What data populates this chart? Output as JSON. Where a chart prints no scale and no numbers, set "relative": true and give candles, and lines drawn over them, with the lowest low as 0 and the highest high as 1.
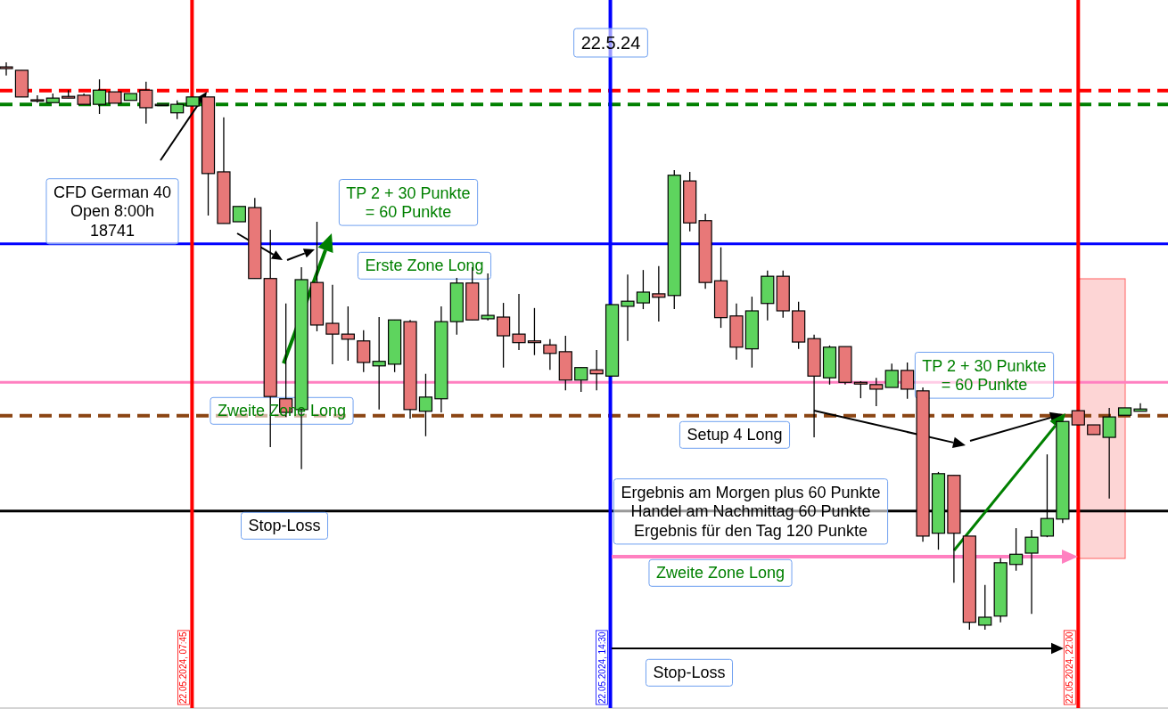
{
  "chart_data": {
    "type": "candlestick",
    "title": "22.5.24",
    "relative": true,
    "categories": [
      null,
      null,
      null,
      null,
      null,
      null,
      null,
      null,
      null,
      null,
      null,
      null,
      null,
      null,
      null,
      null,
      null,
      null,
      null,
      null,
      null,
      null,
      null,
      null,
      null,
      null,
      null,
      null,
      null,
      null,
      null,
      null,
      null,
      null,
      null,
      null,
      null,
      null,
      null,
      null,
      null,
      null,
      null,
      null,
      null,
      null,
      null,
      null,
      null,
      null,
      null,
      null,
      null,
      null,
      null,
      null,
      null,
      null,
      null,
      null,
      null,
      null,
      null,
      null,
      null,
      null,
      null,
      null,
      null,
      null,
      null,
      null,
      null,
      null
    ],
    "ohlc": [
      [
        0.992,
        1.0,
        0.977,
        0.989
      ],
      [
        0.986,
        0.986,
        0.939,
        0.939
      ],
      [
        0.934,
        0.942,
        0.929,
        0.933
      ],
      [
        0.929,
        0.945,
        0.929,
        0.937
      ],
      [
        0.94,
        0.951,
        0.937,
        0.937
      ],
      [
        0.942,
        0.945,
        0.926,
        0.926
      ],
      [
        0.926,
        0.97,
        0.909,
        0.951
      ],
      [
        0.948,
        0.948,
        0.928,
        0.928
      ],
      [
        0.933,
        0.945,
        0.933,
        0.945
      ],
      [
        0.951,
        0.966,
        0.892,
        0.92
      ],
      [
        0.925,
        0.926,
        0.925,
        0.926
      ],
      [
        0.911,
        0.933,
        0.9,
        0.926
      ],
      [
        0.923,
        0.939,
        0.923,
        0.939
      ],
      [
        0.939,
        0.939,
        0.73,
        0.804
      ],
      [
        0.807,
        0.903,
        0.716,
        0.716
      ],
      [
        0.719,
        0.746,
        0.719,
        0.746
      ],
      [
        0.744,
        0.761,
        0.619,
        0.619
      ],
      [
        0.619,
        0.705,
        0.322,
        0.411
      ],
      [
        0.407,
        0.575,
        0.375,
        0.383
      ],
      [
        0.388,
        0.639,
        0.283,
        0.617
      ],
      [
        0.612,
        0.719,
        0.526,
        0.537
      ],
      [
        0.54,
        0.608,
        0.468,
        0.521
      ],
      [
        0.521,
        0.57,
        0.474,
        0.512
      ],
      [
        0.509,
        0.528,
        0.454,
        0.471
      ],
      [
        0.465,
        0.551,
        0.388,
        0.473
      ],
      [
        0.468,
        0.546,
        0.454,
        0.546
      ],
      [
        0.543,
        0.546,
        0.372,
        0.388
      ],
      [
        0.385,
        0.451,
        0.341,
        0.41
      ],
      [
        0.407,
        0.57,
        0.383,
        0.543
      ],
      [
        0.543,
        0.62,
        0.52,
        0.611
      ],
      [
        0.611,
        0.639,
        0.546,
        0.546
      ],
      [
        0.548,
        0.628,
        0.545,
        0.554
      ],
      [
        0.551,
        0.576,
        0.462,
        0.518
      ],
      [
        0.521,
        0.592,
        0.493,
        0.506
      ],
      [
        0.509,
        0.567,
        0.484,
        0.506
      ],
      [
        0.502,
        0.512,
        0.458,
        0.487
      ],
      [
        0.49,
        0.518,
        0.422,
        0.44
      ],
      [
        0.44,
        0.462,
        0.419,
        0.462
      ],
      [
        0.458,
        0.493,
        0.422,
        0.451
      ],
      [
        0.447,
        0.573,
        0.447,
        0.573
      ],
      [
        0.57,
        0.626,
        0.509,
        0.579
      ],
      [
        0.576,
        0.634,
        0.565,
        0.595
      ],
      [
        0.592,
        0.641,
        0.543,
        0.586
      ],
      [
        0.589,
        0.81,
        0.565,
        0.801
      ],
      [
        0.791,
        0.807,
        0.702,
        0.717
      ],
      [
        0.721,
        0.733,
        0.601,
        0.612
      ],
      [
        0.615,
        0.674,
        0.532,
        0.55
      ],
      [
        0.553,
        0.575,
        0.476,
        0.498
      ],
      [
        0.495,
        0.587,
        0.462,
        0.562
      ],
      [
        0.575,
        0.633,
        0.545,
        0.623
      ],
      [
        0.623,
        0.633,
        0.55,
        0.562
      ],
      [
        0.562,
        0.578,
        0.495,
        0.507
      ],
      [
        0.513,
        0.52,
        0.339,
        0.447
      ],
      [
        0.444,
        0.501,
        0.432,
        0.498
      ],
      [
        0.499,
        0.499,
        0.432,
        0.436
      ],
      [
        0.436,
        0.438,
        0.408,
        0.433
      ],
      [
        0.432,
        0.444,
        0.394,
        0.424
      ],
      [
        0.427,
        0.469,
        0.427,
        0.457
      ],
      [
        0.457,
        0.471,
        0.407,
        0.424
      ],
      [
        0.421,
        0.427,
        0.155,
        0.165
      ],
      [
        0.17,
        0.278,
        0.141,
        0.275
      ],
      [
        0.272,
        0.272,
        0.083,
        0.17
      ],
      [
        0.165,
        0.165,
        0.0,
        0.013
      ],
      [
        0.008,
        0.079,
        0.0,
        0.022
      ],
      [
        0.024,
        0.126,
        0.013,
        0.118
      ],
      [
        0.115,
        0.179,
        0.104,
        0.133
      ],
      [
        0.135,
        0.176,
        0.028,
        0.163
      ],
      [
        0.165,
        0.309,
        0.163,
        0.196
      ],
      [
        0.195,
        0.367,
        0.188,
        0.367
      ],
      [
        0.386,
        0.386,
        0.361,
        0.361
      ],
      [
        0.361,
        0.361,
        0.344,
        0.344
      ],
      [
        0.339,
        0.391,
        0.231,
        0.375
      ],
      [
        0.378,
        0.391,
        0.378,
        0.391
      ],
      [
        0.385,
        0.399,
        0.385,
        0.389
      ]
    ],
    "colors": [
      "#e87878",
      "#e87878",
      "#e87878",
      "#5ed45e",
      "#e87878",
      "#e87878",
      "#5ed45e",
      "#e87878",
      "#5ed45e",
      "#e87878",
      "#5ed45e",
      "#5ed45e",
      "#5ed45e",
      "#e87878",
      "#e87878",
      "#5ed45e",
      "#e87878",
      "#e87878",
      "#e87878",
      "#5ed45e",
      "#e87878",
      "#e87878",
      "#e87878",
      "#e87878",
      "#5ed45e",
      "#5ed45e",
      "#e87878",
      "#5ed45e",
      "#5ed45e",
      "#5ed45e",
      "#e87878",
      "#5ed45e",
      "#e87878",
      "#e87878",
      "#e87878",
      "#e87878",
      "#e87878",
      "#5ed45e",
      "#e87878",
      "#5ed45e",
      "#5ed45e",
      "#5ed45e",
      "#e87878",
      "#5ed45e",
      "#e87878",
      "#e87878",
      "#e87878",
      "#e87878",
      "#5ed45e",
      "#5ed45e",
      "#e87878",
      "#e87878",
      "#e87878",
      "#5ed45e",
      "#e87878",
      "#e87878",
      "#e87878",
      "#5ed45e",
      "#e87878",
      "#e87878",
      "#5ed45e",
      "#e87878",
      "#e87878",
      "#5ed45e",
      "#5ed45e",
      "#5ed45e",
      "#5ed45e",
      "#5ed45e",
      "#5ed45e",
      "#e87878",
      "#e87878",
      "#5ed45e",
      "#5ed45e",
      "#5ed45e"
    ],
    "ref_lines": [
      {
        "axis": "y",
        "value": 0.95,
        "color": "#ff0000",
        "line_style": "dashed"
      },
      {
        "axis": "y",
        "value": 0.926,
        "color": "#008000",
        "line_style": "dashed"
      },
      {
        "axis": "y",
        "value": 0.68,
        "color": "#0000ff"
      },
      {
        "axis": "y",
        "value": 0.436,
        "color": "#ff80c0"
      },
      {
        "axis": "y",
        "value": 0.377,
        "color": "#8b4513",
        "line_style": "dashed"
      },
      {
        "axis": "y",
        "value": 0.209,
        "color": "#000000"
      }
    ],
    "annotations": [
      "CFD German 40\nOpen 8:00h\n18741",
      "TP 2 + 30 Punkte\n= 60 Punkte",
      "Erste Zone Long",
      "Zweite Zone Long",
      "Stop-Loss",
      "TP 2 + 30 Punkte\n= 60 Punkte",
      "Setup 4 Long",
      "Ergebnis am Morgen plus 60 Punkte\nHandel am Nachmittag 60 Punkte\nErgebnis für den Tag  120 Punkte",
      "Zweite Zone Long",
      "Stop-Loss",
      "22.05.2024, 07:45",
      "22.05.2024, 14:30",
      "22.05.2024, 22:00"
    ]
  }
}
